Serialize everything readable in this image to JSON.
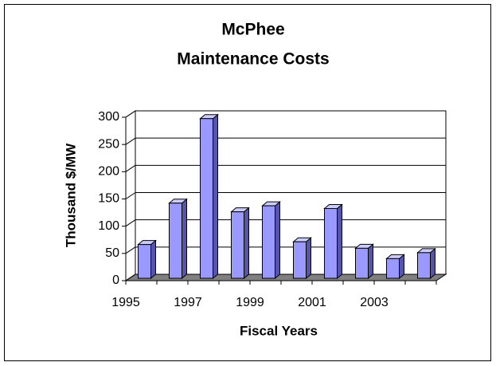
{
  "chart_data": {
    "type": "bar3d",
    "title": [
      "McPhee",
      "Maintenance Costs"
    ],
    "x_label": "Fiscal Years",
    "y_label": "Thousand $/MW",
    "categories": [
      "1995",
      null,
      "1997",
      null,
      "1999",
      null,
      "2001",
      null,
      "2003",
      null
    ],
    "values": [
      62,
      138,
      293,
      122,
      133,
      67,
      128,
      55,
      36,
      47
    ],
    "color": "#9999ff",
    "ylim": [
      0,
      300
    ],
    "yticks": [
      0,
      50,
      100,
      150,
      200,
      250,
      300
    ],
    "grid": true
  }
}
